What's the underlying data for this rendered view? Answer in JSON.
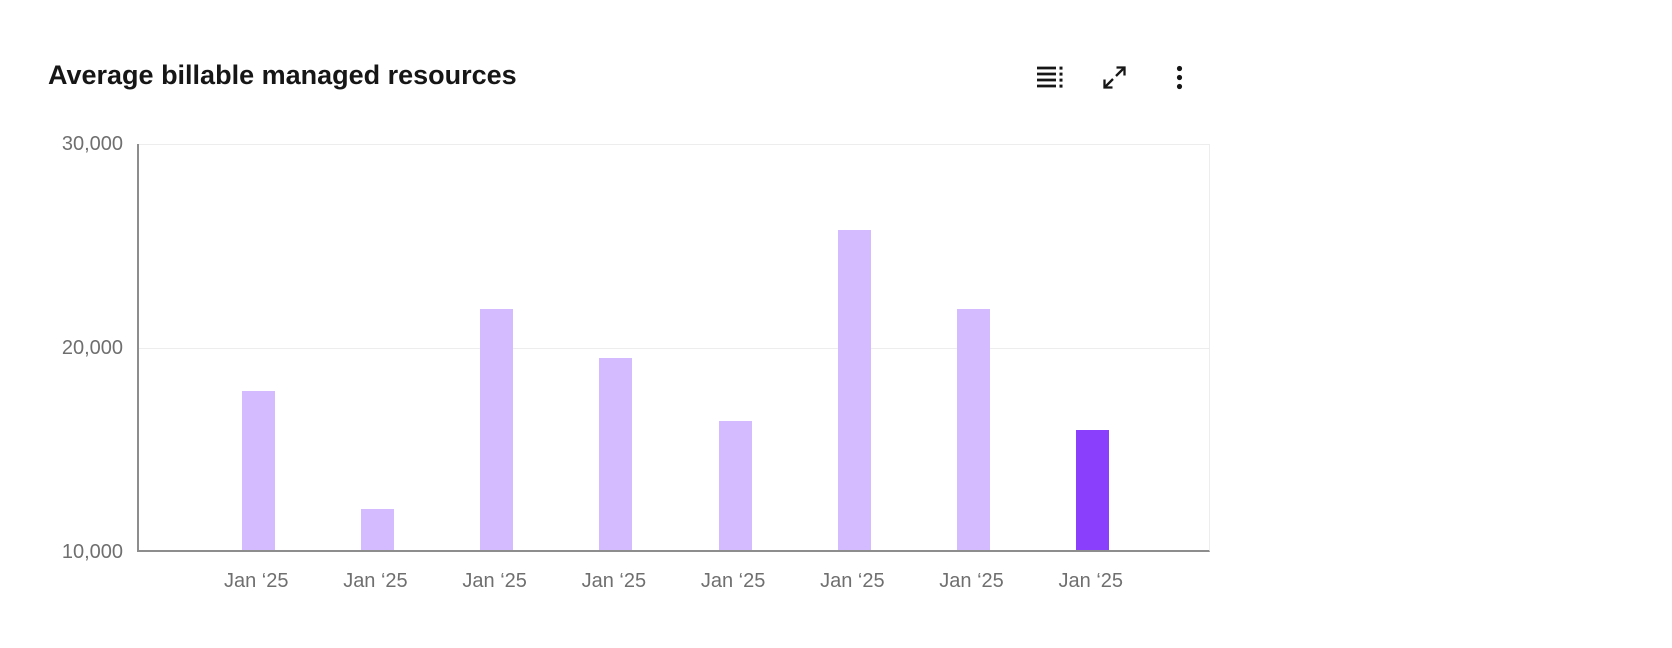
{
  "header": {
    "title": "Average billable managed resources",
    "toolbar": {
      "icons": [
        "data-table-icon",
        "maximize-icon",
        "overflow-menu-icon"
      ]
    }
  },
  "colors": {
    "title": "#161616",
    "icon": "#161616",
    "axis_line": "#8d8d8d",
    "grid_line": "#ededed",
    "tick_label": "#6f6f6f",
    "bar": "#d4bbff",
    "bar_highlight": "#8a3ffc"
  },
  "chart_data": {
    "type": "bar",
    "title": "Average billable managed resources",
    "categories": [
      "Jan ‘25",
      "Jan ‘25",
      "Jan ‘25",
      "Jan ‘25",
      "Jan ‘25",
      "Jan ‘25",
      "Jan ‘25",
      "Jan ‘25"
    ],
    "values": [
      17800,
      12000,
      21800,
      19400,
      16300,
      25700,
      21800,
      15900
    ],
    "highlight_index": 7,
    "bar_color": "#d4bbff",
    "highlight_color": "#8a3ffc",
    "xlabel": "",
    "ylabel": "",
    "ylim": [
      10000,
      30000
    ],
    "yticks": [
      {
        "label": "10,000",
        "value": 10000
      },
      {
        "label": "20,000",
        "value": 20000
      },
      {
        "label": "30,000",
        "value": 30000
      }
    ],
    "grid": "horizontal",
    "legend": "none"
  }
}
